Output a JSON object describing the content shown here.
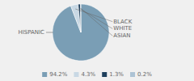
{
  "chart_data": {
    "type": "pie",
    "categories": [
      "HISPANIC",
      "BLACK",
      "WHITE",
      "ASIAN"
    ],
    "values": [
      94.2,
      4.3,
      1.3,
      0.2
    ],
    "value_labels": [
      "94.2%",
      "4.3%",
      "1.3%",
      "0.2%"
    ],
    "colors": [
      "#7a9eb5",
      "#c8d8e4",
      "#1e3f5c",
      "#adc3d4"
    ],
    "legend": "bottom"
  }
}
